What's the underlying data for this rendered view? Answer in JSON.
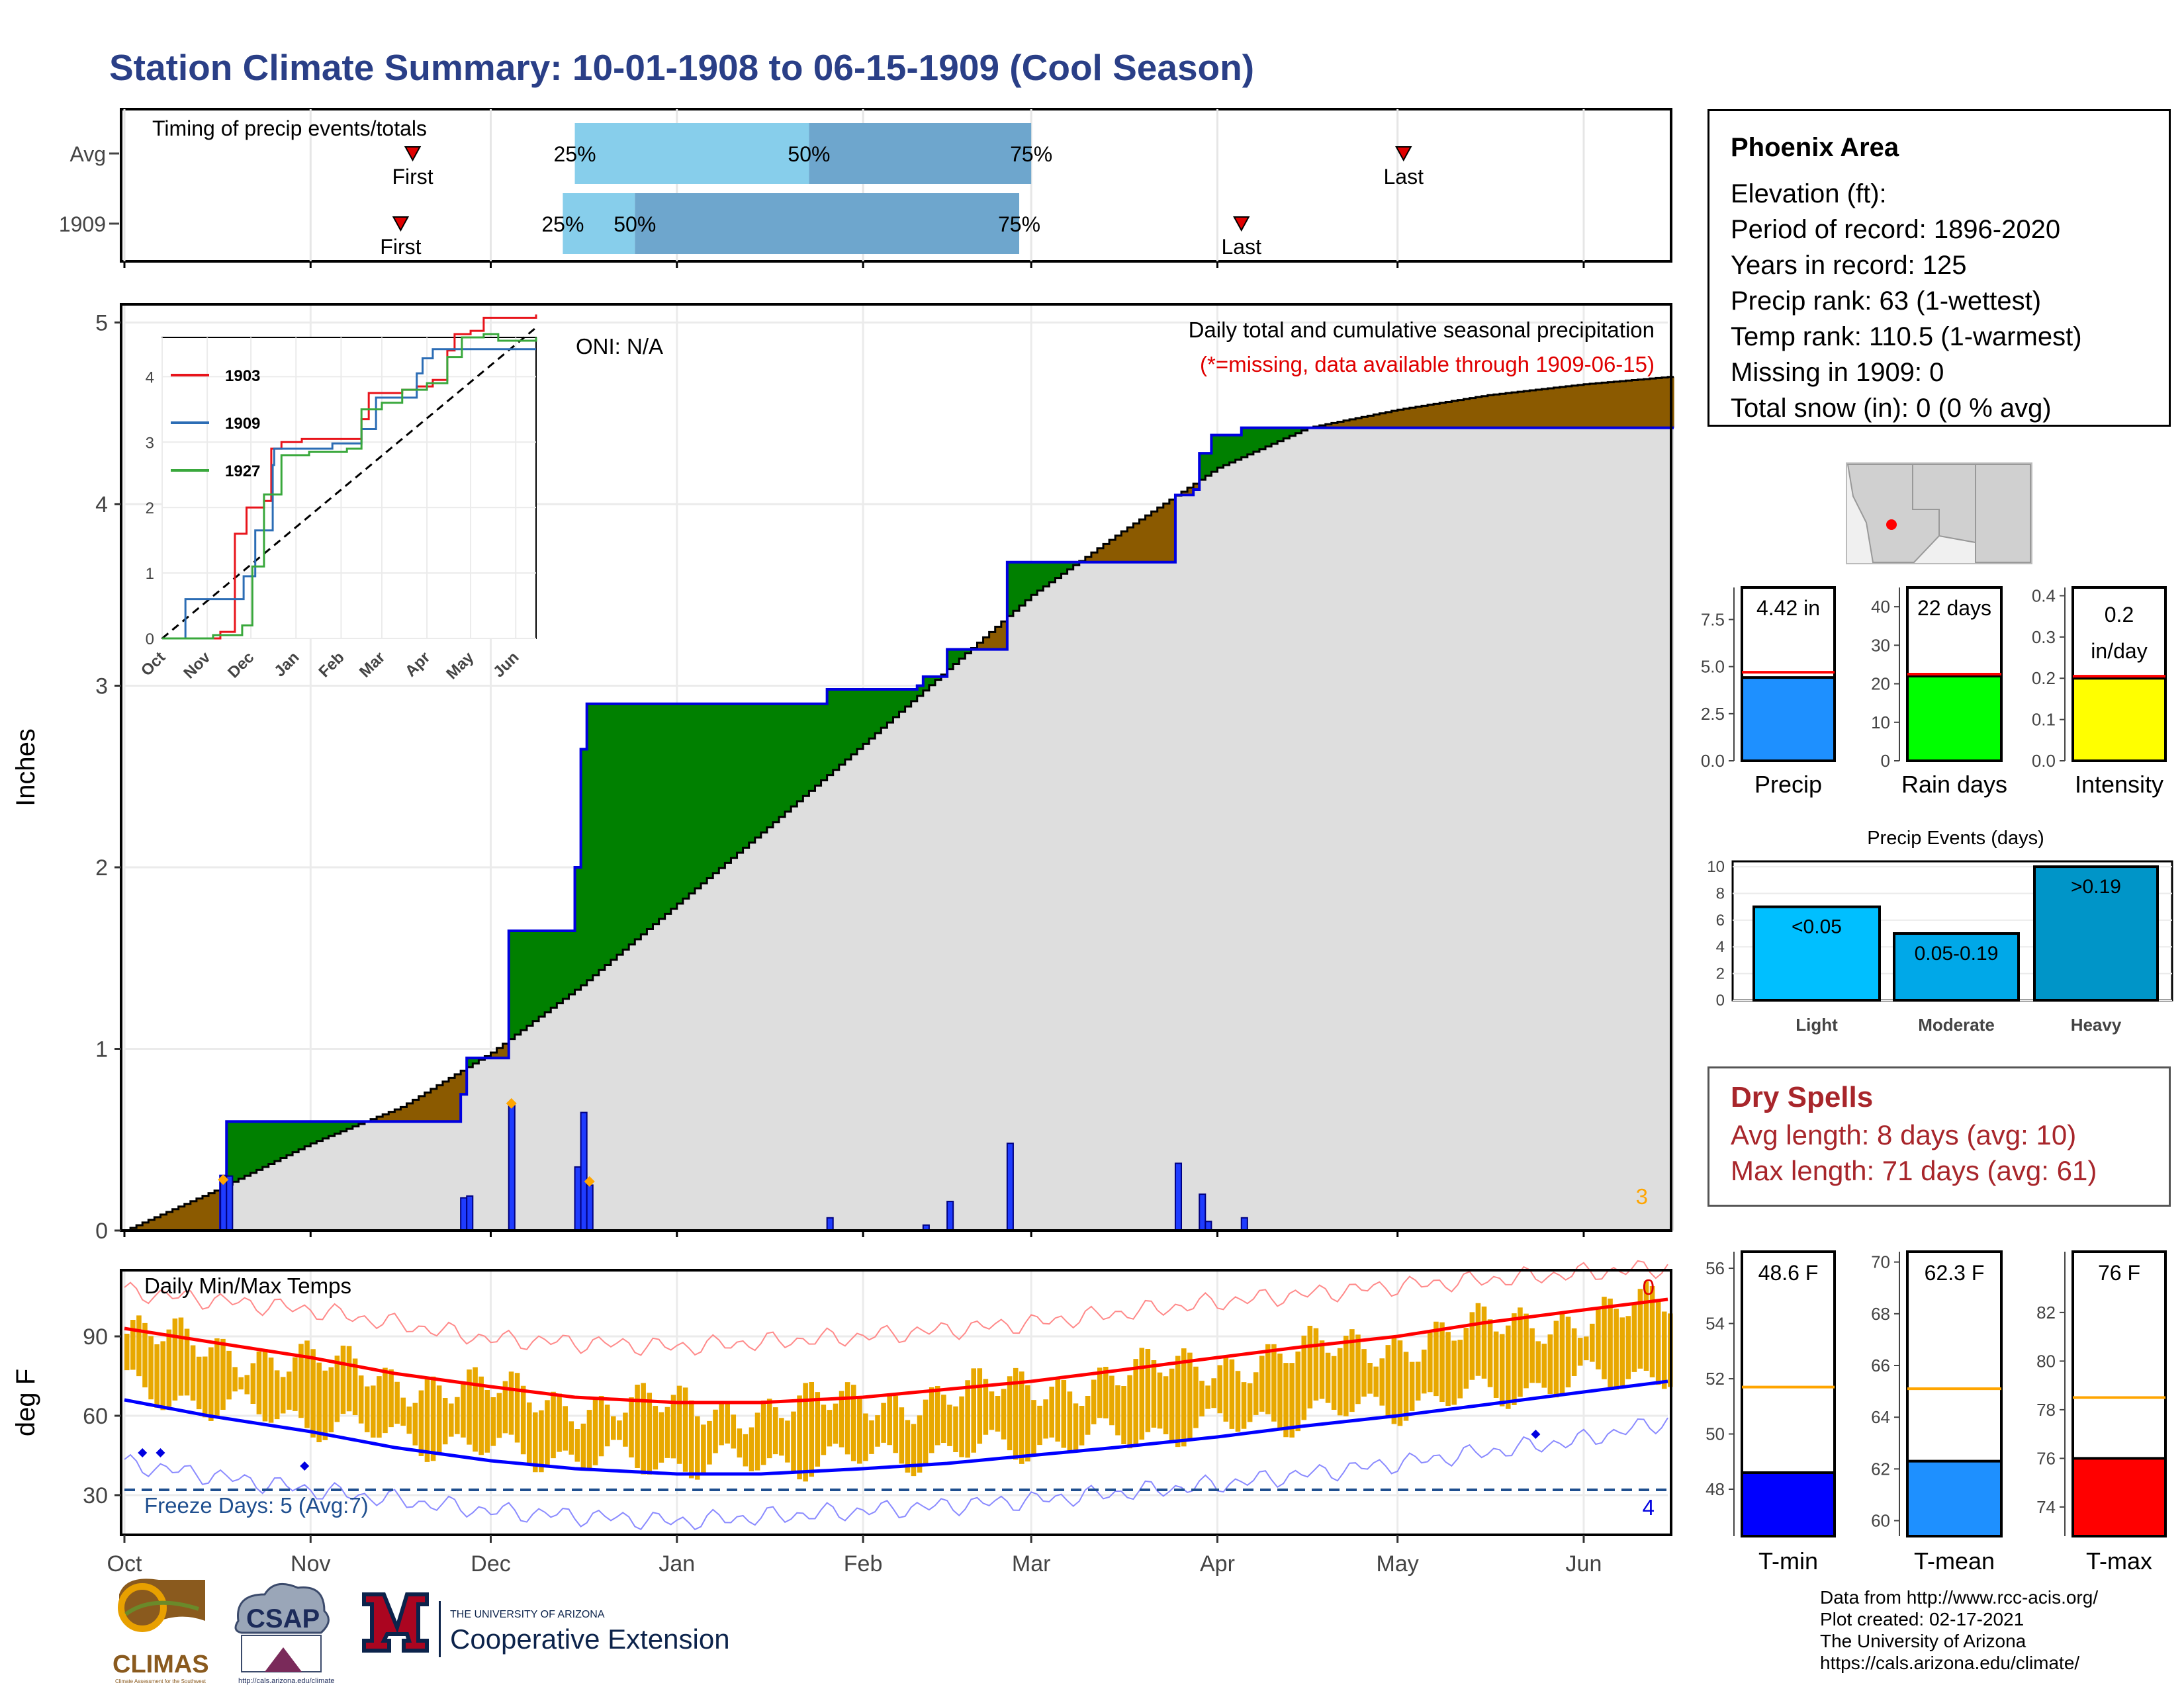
{
  "title": "Station Climate Summary: 10-01-1908 to 06-15-1909 (Cool Season)",
  "colors": {
    "title": "#2a3f87",
    "above_avg": "#008000",
    "below_avg": "#8b5a00",
    "fill_gray": "#dedede",
    "precip_bar": "#1f3cff",
    "tmax": "#ff0000",
    "tmin": "#0000ff",
    "temp_bars": "#e8a800"
  },
  "info": {
    "station": "Phoenix Area",
    "lines": [
      "Elevation (ft):",
      "Period of record: 1896-2020",
      "Years in record: 125",
      "Precip rank: 63 (1-wettest)",
      "Temp rank: 110.5 (1-warmest)",
      "Missing in 1909: 0",
      "Total snow (in): 0 (0 % avg)"
    ]
  },
  "dry_spells": {
    "title": "Dry Spells",
    "avg": "Avg length: 8 days (avg: 10)",
    "max": "Max length: 71 days (avg: 61)"
  },
  "credits": [
    "Data from http://www.rcc-acis.org/",
    "Plot created: 02-17-2021",
    "The University of Arizona",
    "https://cals.arizona.edu/climate/"
  ],
  "logos": {
    "climas": "CLIMAS",
    "climas_sub": "Climate Assessment for the Southwest",
    "csap": "CSAP",
    "csap_url": "http://cals.arizona.edu/climate",
    "ua_top": "THE UNIVERSITY OF ARIZONA",
    "ua_bottom": "Cooperative Extension"
  },
  "chart_data": [
    {
      "id": "timing",
      "type": "bar",
      "title": "Timing of precip events/totals",
      "rows": [
        {
          "label": "Avg",
          "first": "1908-11-18",
          "last": "1909-05-02",
          "p25": "1908-12-15",
          "p50": "1909-01-23",
          "p75": "1909-03-01",
          "pct_labels": [
            "25%",
            "50%",
            "75%"
          ]
        },
        {
          "label": "1909",
          "first": "1908-11-16",
          "last": "1909-04-05",
          "p25": "1908-12-13",
          "p50": "1908-12-25",
          "p75": "1909-02-27",
          "pct_labels": [
            "25%",
            "50%",
            "75%"
          ]
        }
      ],
      "marker_labels": {
        "first": "First",
        "last": "Last"
      }
    },
    {
      "id": "cumulative_precip",
      "type": "area",
      "ylabel": "Inches",
      "ylim": [
        0,
        5.1
      ],
      "yticks": [
        0,
        1,
        2,
        3,
        4,
        5
      ],
      "xlim": [
        "1908-10-01",
        "1909-06-15"
      ],
      "annotation_title": "Daily total and cumulative seasonal precipitation",
      "annotation_missing": "(*=missing, data available through 1909-06-15)",
      "oni": "ONI: N/A",
      "corner_count": "3",
      "avg_cumulative": [
        [
          "1908-10-01",
          0.0
        ],
        [
          "1908-10-16",
          0.22
        ],
        [
          "1908-11-01",
          0.48
        ],
        [
          "1908-11-16",
          0.68
        ],
        [
          "1908-12-01",
          0.98
        ],
        [
          "1908-12-16",
          1.35
        ],
        [
          "1909-01-01",
          1.8
        ],
        [
          "1909-01-16",
          2.22
        ],
        [
          "1909-02-01",
          2.68
        ],
        [
          "1909-02-16",
          3.12
        ],
        [
          "1909-03-01",
          3.5
        ],
        [
          "1909-03-16",
          3.85
        ],
        [
          "1909-04-01",
          4.2
        ],
        [
          "1909-04-16",
          4.42
        ],
        [
          "1909-05-01",
          4.52
        ],
        [
          "1909-05-16",
          4.6
        ],
        [
          "1909-06-01",
          4.66
        ],
        [
          "1909-06-15",
          4.7
        ]
      ],
      "cumulative_1909": [
        [
          "1908-10-01",
          0.0
        ],
        [
          "1908-10-16",
          0.0
        ],
        [
          "1908-10-17",
          0.3
        ],
        [
          "1908-10-18",
          0.6
        ],
        [
          "1908-11-25",
          0.6
        ],
        [
          "1908-11-26",
          0.75
        ],
        [
          "1908-11-27",
          0.95
        ],
        [
          "1908-12-03",
          0.95
        ],
        [
          "1908-12-04",
          1.65
        ],
        [
          "1908-12-14",
          1.65
        ],
        [
          "1908-12-15",
          2.0
        ],
        [
          "1908-12-16",
          2.65
        ],
        [
          "1908-12-17",
          2.9
        ],
        [
          "1909-01-25",
          2.9
        ],
        [
          "1909-01-26",
          2.98
        ],
        [
          "1909-02-10",
          3.0
        ],
        [
          "1909-02-11",
          3.05
        ],
        [
          "1909-02-14",
          3.05
        ],
        [
          "1909-02-15",
          3.2
        ],
        [
          "1909-02-24",
          3.2
        ],
        [
          "1909-02-25",
          3.68
        ],
        [
          "1909-03-24",
          3.68
        ],
        [
          "1909-03-25",
          4.05
        ],
        [
          "1909-03-28",
          4.08
        ],
        [
          "1909-03-29",
          4.28
        ],
        [
          "1909-03-31",
          4.38
        ],
        [
          "1909-04-05",
          4.42
        ],
        [
          "1909-06-15",
          4.42
        ]
      ],
      "daily_1909": [
        [
          "1908-10-17",
          0.3
        ],
        [
          "1908-10-18",
          0.3
        ],
        [
          "1908-11-26",
          0.18
        ],
        [
          "1908-11-27",
          0.19
        ],
        [
          "1908-12-04",
          0.7
        ],
        [
          "1908-12-15",
          0.35
        ],
        [
          "1908-12-16",
          0.65
        ],
        [
          "1908-12-17",
          0.25
        ],
        [
          "1909-01-26",
          0.07
        ],
        [
          "1909-02-11",
          0.03
        ],
        [
          "1909-02-15",
          0.16
        ],
        [
          "1909-02-25",
          0.48
        ],
        [
          "1909-03-25",
          0.37
        ],
        [
          "1909-03-29",
          0.2
        ],
        [
          "1909-03-30",
          0.05
        ],
        [
          "1909-04-05",
          0.07
        ]
      ],
      "missing_markers": [
        [
          "1908-10-17",
          0.28
        ],
        [
          "1908-12-04",
          0.7
        ],
        [
          "1908-12-17",
          0.27
        ]
      ],
      "inset": {
        "series": [
          {
            "name": "1903",
            "color": "#e8141b",
            "points": [
              [
                "1908-10-01",
                0
              ],
              [
                "1908-11-10",
                0.1
              ],
              [
                "1908-11-20",
                1.6
              ],
              [
                "1908-11-28",
                2.0
              ],
              [
                "1908-12-10",
                2.1
              ],
              [
                "1908-12-15",
                2.9
              ],
              [
                "1908-12-22",
                3.0
              ],
              [
                "1909-01-05",
                3.05
              ],
              [
                "1909-02-10",
                3.05
              ],
              [
                "1909-02-15",
                3.35
              ],
              [
                "1909-02-20",
                3.75
              ],
              [
                "1909-03-01",
                3.75
              ],
              [
                "1909-03-15",
                3.8
              ],
              [
                "1909-03-25",
                3.85
              ],
              [
                "1909-04-05",
                3.95
              ],
              [
                "1909-04-15",
                4.4
              ],
              [
                "1909-04-20",
                4.65
              ],
              [
                "1909-05-01",
                4.7
              ],
              [
                "1909-05-10",
                4.9
              ],
              [
                "1909-06-15",
                4.95
              ]
            ]
          },
          {
            "name": "1909",
            "color": "#2c6db5",
            "points": [
              [
                "1908-10-01",
                0
              ],
              [
                "1908-10-17",
                0.6
              ],
              [
                "1908-11-26",
                0.95
              ],
              [
                "1908-12-04",
                1.65
              ],
              [
                "1908-12-16",
                2.65
              ],
              [
                "1908-12-17",
                2.9
              ],
              [
                "1909-01-26",
                2.98
              ],
              [
                "1909-02-15",
                3.2
              ],
              [
                "1909-02-25",
                3.68
              ],
              [
                "1909-03-25",
                4.05
              ],
              [
                "1909-03-29",
                4.28
              ],
              [
                "1909-04-05",
                4.42
              ],
              [
                "1909-06-15",
                4.42
              ]
            ]
          },
          {
            "name": "1927",
            "color": "#39a83c",
            "points": [
              [
                "1908-10-01",
                0
              ],
              [
                "1908-11-05",
                0.05
              ],
              [
                "1908-11-25",
                0.2
              ],
              [
                "1908-12-02",
                1.1
              ],
              [
                "1908-12-10",
                2.2
              ],
              [
                "1908-12-22",
                2.8
              ],
              [
                "1909-01-10",
                2.85
              ],
              [
                "1909-02-05",
                2.9
              ],
              [
                "1909-02-15",
                3.5
              ],
              [
                "1909-03-01",
                3.6
              ],
              [
                "1909-03-15",
                3.8
              ],
              [
                "1909-04-01",
                3.9
              ],
              [
                "1909-04-15",
                4.3
              ],
              [
                "1909-04-25",
                4.6
              ],
              [
                "1909-05-10",
                4.65
              ],
              [
                "1909-05-20",
                4.55
              ],
              [
                "1909-06-15",
                4.6
              ]
            ]
          }
        ],
        "yticks": [
          0,
          1,
          2,
          3,
          4
        ],
        "xticks": [
          "Oct",
          "Nov",
          "Dec",
          "Jan",
          "Feb",
          "Mar",
          "Apr",
          "May",
          "Jun"
        ]
      }
    },
    {
      "id": "temps",
      "type": "line",
      "title": "Daily Min/Max Temps",
      "ylabel": "deg F",
      "ylim": [
        15,
        115
      ],
      "yticks": [
        30,
        60,
        90
      ],
      "freeze_line": 32,
      "freeze_text": "Freeze Days: 5 (Avg:7)",
      "count_top": "0",
      "count_bottom": "4",
      "avg_max": [
        [
          "1908-10-01",
          93
        ],
        [
          "1908-10-15",
          88
        ],
        [
          "1908-11-01",
          82
        ],
        [
          "1908-11-15",
          76
        ],
        [
          "1908-12-01",
          71
        ],
        [
          "1908-12-15",
          67
        ],
        [
          "1909-01-01",
          65
        ],
        [
          "1909-01-15",
          65
        ],
        [
          "1909-02-01",
          67
        ],
        [
          "1909-02-15",
          70
        ],
        [
          "1909-03-01",
          73
        ],
        [
          "1909-03-15",
          77
        ],
        [
          "1909-04-01",
          82
        ],
        [
          "1909-04-15",
          86
        ],
        [
          "1909-05-01",
          90
        ],
        [
          "1909-05-15",
          95
        ],
        [
          "1909-06-01",
          100
        ],
        [
          "1909-06-15",
          104
        ]
      ],
      "avg_min": [
        [
          "1908-10-01",
          66
        ],
        [
          "1908-10-15",
          60
        ],
        [
          "1908-11-01",
          54
        ],
        [
          "1908-11-15",
          48
        ],
        [
          "1908-12-01",
          43
        ],
        [
          "1908-12-15",
          40
        ],
        [
          "1909-01-01",
          38
        ],
        [
          "1909-01-15",
          38
        ],
        [
          "1909-02-01",
          40
        ],
        [
          "1909-02-15",
          42
        ],
        [
          "1909-03-01",
          45
        ],
        [
          "1909-03-15",
          48
        ],
        [
          "1909-04-01",
          52
        ],
        [
          "1909-04-15",
          56
        ],
        [
          "1909-05-01",
          60
        ],
        [
          "1909-05-15",
          64
        ],
        [
          "1909-06-01",
          69
        ],
        [
          "1909-06-15",
          73
        ]
      ],
      "record_max": [
        [
          "1908-10-01",
          107
        ],
        [
          "1908-11-01",
          100
        ],
        [
          "1908-12-01",
          89
        ],
        [
          "1909-01-01",
          86
        ],
        [
          "1909-02-01",
          90
        ],
        [
          "1909-03-01",
          95
        ],
        [
          "1909-04-01",
          103
        ],
        [
          "1909-05-01",
          109
        ],
        [
          "1909-06-01",
          114
        ],
        [
          "1909-06-15",
          116
        ]
      ],
      "record_min": [
        [
          "1908-10-01",
          42
        ],
        [
          "1908-11-01",
          32
        ],
        [
          "1908-12-01",
          24
        ],
        [
          "1909-01-01",
          20
        ],
        [
          "1909-02-01",
          24
        ],
        [
          "1909-03-01",
          28
        ],
        [
          "1909-04-01",
          34
        ],
        [
          "1909-05-01",
          42
        ],
        [
          "1909-06-01",
          51
        ],
        [
          "1909-06-15",
          58
        ]
      ],
      "daily_range_1909": {
        "start": "1908-10-01",
        "end": "1909-06-15",
        "note": "daily min-max bars follow the average envelope with day-to-day variation"
      },
      "low_markers": [
        [
          "1908-10-04",
          46
        ],
        [
          "1908-10-07",
          46
        ],
        [
          "1908-10-31",
          41
        ],
        [
          "1909-05-24",
          53
        ]
      ],
      "xticks": [
        "Oct",
        "Nov",
        "Dec",
        "Jan",
        "Feb",
        "Mar",
        "Apr",
        "May",
        "Jun"
      ]
    },
    {
      "id": "precip_summary",
      "type": "bar",
      "panels": [
        {
          "label": "Precip",
          "value": 4.42,
          "avg": 4.7,
          "display": "4.42 in",
          "color": "#1e90ff",
          "ylim": [
            0,
            9.2
          ],
          "yticks": [
            "0.0",
            "2.5",
            "5.0",
            "7.5"
          ]
        },
        {
          "label": "Rain days",
          "value": 22,
          "avg": 22.5,
          "display": "22 days",
          "color": "#00ff00",
          "ylim": [
            0,
            45
          ],
          "yticks": [
            "0",
            "10",
            "20",
            "30",
            "40"
          ]
        },
        {
          "label": "Intensity",
          "value": 0.2,
          "avg": 0.205,
          "display": [
            "0.2",
            "in/day"
          ],
          "color": "#ffff00",
          "ylim": [
            0,
            0.42
          ],
          "yticks": [
            "0.0",
            "0.1",
            "0.2",
            "0.3",
            "0.4"
          ]
        }
      ]
    },
    {
      "id": "precip_events",
      "type": "bar",
      "title": "Precip Events (days)",
      "categories": [
        "Light",
        "Moderate",
        "Heavy"
      ],
      "bar_labels": [
        "<0.05",
        "0.05-0.19",
        ">0.19"
      ],
      "values": [
        7,
        5,
        10
      ],
      "colors": [
        "#00bfff",
        "#00a8e8",
        "#0095c8"
      ],
      "ylim": [
        0,
        10.4
      ],
      "yticks": [
        "0",
        "2",
        "4",
        "6",
        "8",
        "10"
      ]
    },
    {
      "id": "temp_summary",
      "type": "bar",
      "panels": [
        {
          "label": "T-min",
          "value": 48.6,
          "avg": 51.7,
          "display": "48.6 F",
          "color": "#0000ff",
          "ylim": [
            46.3,
            56.6
          ],
          "yticks": [
            "48",
            "50",
            "52",
            "54",
            "56"
          ]
        },
        {
          "label": "T-mean",
          "value": 62.3,
          "avg": 65.1,
          "display": "62.3 F",
          "color": "#1e90ff",
          "ylim": [
            59.4,
            70.4
          ],
          "yticks": [
            "60",
            "62",
            "64",
            "66",
            "68",
            "70"
          ]
        },
        {
          "label": "T-max",
          "value": 76,
          "avg": 78.5,
          "display": "76 F",
          "color": "#ff0000",
          "ylim": [
            72.8,
            84.5
          ],
          "yticks": [
            "74",
            "76",
            "78",
            "80",
            "82"
          ]
        }
      ]
    }
  ]
}
